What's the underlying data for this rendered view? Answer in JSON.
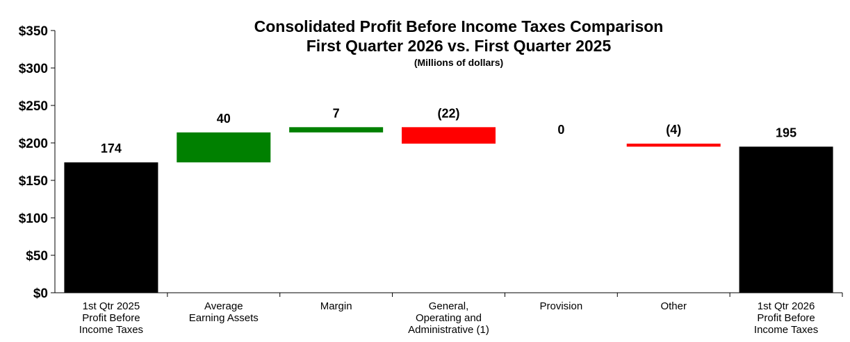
{
  "chart_data": {
    "type": "bar",
    "subtype": "waterfall",
    "title": "Consolidated Profit Before Income Taxes Comparison",
    "subtitle": "First Quarter 2026 vs. First Quarter 2025",
    "units_note": "(Millions of dollars)",
    "ylim": [
      0,
      350
    ],
    "y_ticks": [
      {
        "value": 0,
        "label": "$0"
      },
      {
        "value": 50,
        "label": "$50"
      },
      {
        "value": 100,
        "label": "$100"
      },
      {
        "value": 150,
        "label": "$150"
      },
      {
        "value": 200,
        "label": "$200"
      },
      {
        "value": 250,
        "label": "$250"
      },
      {
        "value": 300,
        "label": "$300"
      },
      {
        "value": 350,
        "label": "$350"
      }
    ],
    "grid": false,
    "legend": "none",
    "categories": [
      [
        "1st Qtr 2025",
        "Profit Before",
        "Income Taxes"
      ],
      [
        "Average",
        "Earning Assets"
      ],
      [
        "Margin"
      ],
      [
        "General,",
        "Operating and",
        "Administrative (1)"
      ],
      [
        "Provision"
      ],
      [
        "Other"
      ],
      [
        "1st Qtr 2026",
        "Profit Before",
        "Income Taxes"
      ]
    ],
    "bars": [
      {
        "kind": "total",
        "value": 174,
        "label": "174",
        "color": "#000000"
      },
      {
        "kind": "change",
        "value": 40,
        "label": "40",
        "color": "#008000"
      },
      {
        "kind": "change",
        "value": 7,
        "label": "7",
        "color": "#008000"
      },
      {
        "kind": "change",
        "value": -22,
        "label": "(22)",
        "color": "#FF0000"
      },
      {
        "kind": "change",
        "value": 0,
        "label": "0",
        "color": "#FFFFFF"
      },
      {
        "kind": "change",
        "value": -4,
        "label": "(4)",
        "color": "#FF0000"
      },
      {
        "kind": "total",
        "value": 195,
        "label": "195",
        "color": "#000000"
      }
    ]
  }
}
